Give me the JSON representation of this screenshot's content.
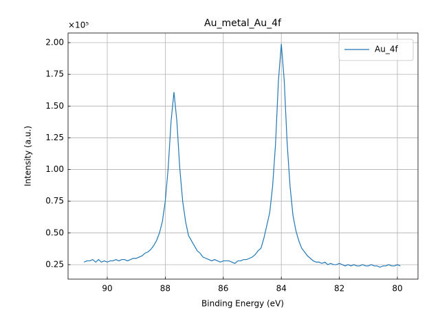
{
  "chart_data": {
    "type": "line",
    "title": "Au_metal_Au_4f",
    "x_label": "Binding Energy (eV)",
    "y_label": "Intensity (a.u.)",
    "y_offset_label": "×10⁵",
    "x": [
      90.8,
      90.7,
      90.6,
      90.5,
      90.4,
      90.3,
      90.2,
      90.1,
      90.0,
      89.9,
      89.8,
      89.7,
      89.6,
      89.5,
      89.4,
      89.3,
      89.2,
      89.1,
      89.0,
      88.9,
      88.8,
      88.7,
      88.6,
      88.5,
      88.4,
      88.3,
      88.2,
      88.1,
      88.0,
      87.9,
      87.8,
      87.7,
      87.6,
      87.5,
      87.4,
      87.3,
      87.2,
      87.1,
      87.0,
      86.9,
      86.8,
      86.7,
      86.6,
      86.5,
      86.4,
      86.3,
      86.2,
      86.1,
      86.0,
      85.9,
      85.8,
      85.7,
      85.6,
      85.5,
      85.4,
      85.3,
      85.2,
      85.1,
      85.0,
      84.9,
      84.8,
      84.7,
      84.6,
      84.5,
      84.4,
      84.3,
      84.2,
      84.1,
      84.0,
      83.9,
      83.8,
      83.7,
      83.6,
      83.5,
      83.4,
      83.3,
      83.2,
      83.1,
      83.0,
      82.9,
      82.8,
      82.7,
      82.6,
      82.5,
      82.4,
      82.3,
      82.2,
      82.1,
      82.0,
      81.9,
      81.8,
      81.7,
      81.6,
      81.5,
      81.4,
      81.3,
      81.2,
      81.1,
      81.0,
      80.9,
      80.8,
      80.7,
      80.6,
      80.5,
      80.4,
      80.3,
      80.2,
      80.1,
      80.0,
      79.9
    ],
    "series": [
      {
        "name": "Au_4f",
        "color": "#1f77b4",
        "values": [
          0.27,
          0.28,
          0.28,
          0.29,
          0.27,
          0.29,
          0.27,
          0.28,
          0.27,
          0.28,
          0.28,
          0.29,
          0.28,
          0.29,
          0.29,
          0.28,
          0.29,
          0.3,
          0.3,
          0.31,
          0.32,
          0.34,
          0.35,
          0.37,
          0.4,
          0.44,
          0.5,
          0.59,
          0.75,
          1.01,
          1.38,
          1.61,
          1.38,
          1.01,
          0.75,
          0.59,
          0.48,
          0.44,
          0.4,
          0.36,
          0.34,
          0.31,
          0.3,
          0.29,
          0.28,
          0.29,
          0.28,
          0.27,
          0.28,
          0.28,
          0.28,
          0.27,
          0.26,
          0.28,
          0.28,
          0.29,
          0.29,
          0.3,
          0.31,
          0.33,
          0.36,
          0.38,
          0.46,
          0.56,
          0.66,
          0.87,
          1.2,
          1.7,
          1.99,
          1.7,
          1.21,
          0.87,
          0.64,
          0.52,
          0.44,
          0.38,
          0.35,
          0.32,
          0.3,
          0.28,
          0.27,
          0.27,
          0.26,
          0.27,
          0.25,
          0.26,
          0.25,
          0.25,
          0.26,
          0.25,
          0.24,
          0.25,
          0.24,
          0.25,
          0.24,
          0.24,
          0.25,
          0.24,
          0.24,
          0.25,
          0.24,
          0.24,
          0.23,
          0.24,
          0.24,
          0.25,
          0.24,
          0.24,
          0.25,
          0.24
        ]
      }
    ],
    "xlim": [
      91.35,
      79.29
    ],
    "xticks": [
      90,
      88,
      86,
      84,
      82,
      80
    ],
    "ylim": [
      0.136,
      2.076
    ],
    "yticks": [
      0.25,
      {
        "value": 0.5,
        "label": "0.50"
      },
      0.75,
      {
        "value": 1,
        "label": "1.00"
      },
      1.25,
      {
        "value": 1.5,
        "label": "1.50"
      },
      1.75,
      {
        "value": 2,
        "label": "2.00"
      }
    ],
    "grid": true,
    "legend": "upper right"
  }
}
